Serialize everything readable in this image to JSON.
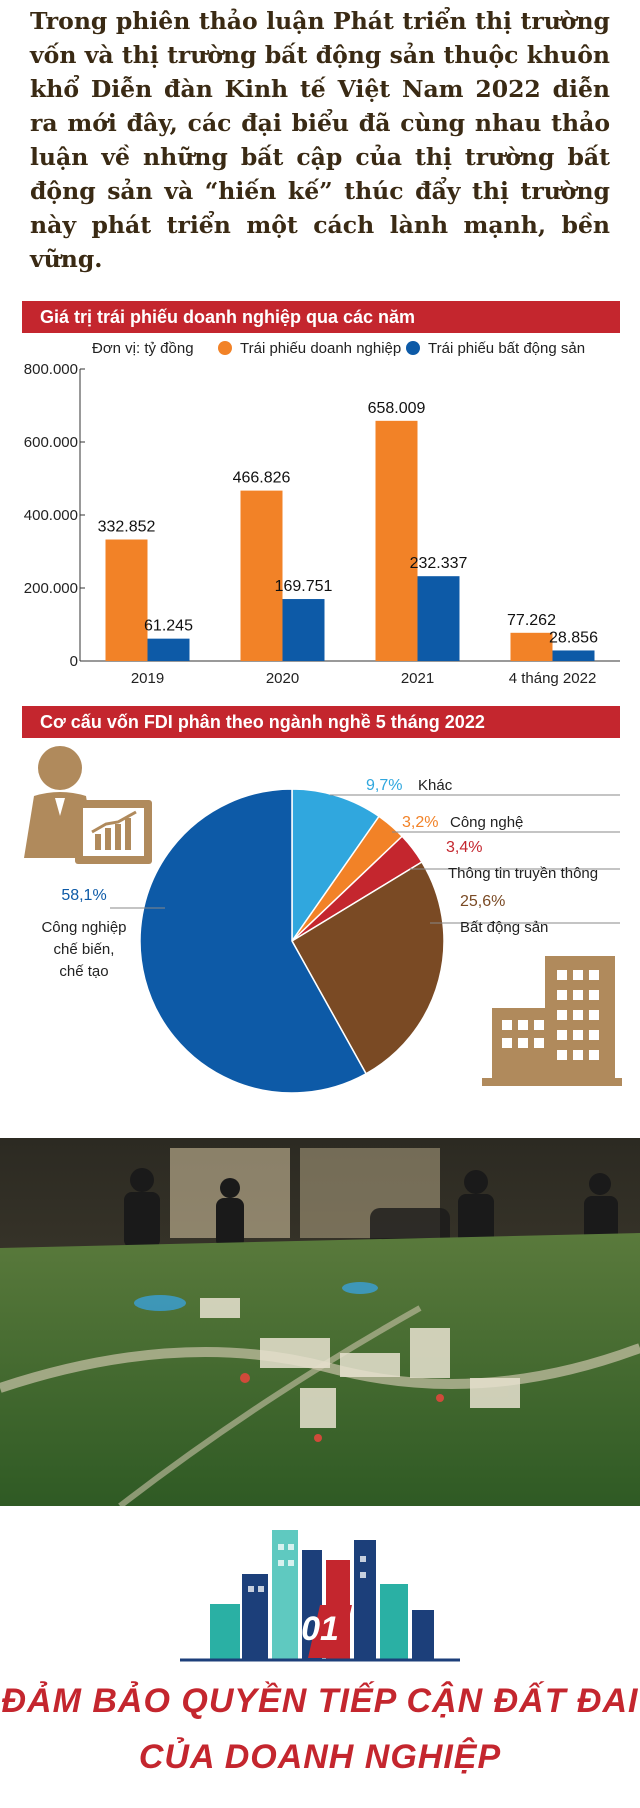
{
  "intro": {
    "text": "Trong phiên thảo luận Phát triển thị trường vốn và thị trường bất động sản thuộc khuôn khổ Diễn đàn Kinh tế Việt Nam 2022 diễn ra mới đây, các đại biểu đã cùng nhau thảo luận về những bất cập của thị trường bất động sản và “hiến kế” thúc đẩy thị trường này phát triển một cách lành mạnh, bền vững."
  },
  "colors": {
    "orange": "#f28227",
    "blue": "#0d5aa7",
    "red": "#c4262e",
    "brown": "#7a4a24",
    "light_blue": "#30a7de",
    "tan": "#b08a5c"
  },
  "chart_data": [
    {
      "type": "bar",
      "title": "Giá trị trái phiếu doanh nghiệp qua các năm",
      "unit_label": "Đơn vị: tỷ đồng",
      "categories": [
        "2019",
        "2020",
        "2021",
        "4 tháng 2022"
      ],
      "series": [
        {
          "name": "Trái phiếu doanh nghiệp",
          "color": "#f28227",
          "values": [
            332852,
            466826,
            658009,
            77262
          ],
          "labels": [
            "332.852",
            "466.826",
            "658.009",
            "77.262"
          ]
        },
        {
          "name": "Trái phiếu bất động sản",
          "color": "#0d5aa7",
          "values": [
            61245,
            169751,
            232337,
            28856
          ],
          "labels": [
            "61.245",
            "169.751",
            "232.337",
            "28.856"
          ]
        }
      ],
      "ylim": [
        0,
        800000
      ],
      "yticks": [
        0,
        200000,
        400000,
        600000,
        800000
      ],
      "ytick_labels": [
        "0",
        "200.000",
        "400.000",
        "600.000",
        "800.000"
      ],
      "grid": false,
      "legend": "top"
    },
    {
      "type": "pie",
      "title": "Cơ cấu vốn FDI phân theo ngành nghề 5 tháng 2022",
      "slices": [
        {
          "name": "Khác",
          "value": 9.7,
          "label": "9,7%",
          "color": "#30a7de"
        },
        {
          "name": "Công nghệ",
          "value": 3.2,
          "label": "3,2%",
          "color": "#f28227"
        },
        {
          "name": "Thông tin truyền thông",
          "value": 3.4,
          "label": "3,4%",
          "color": "#c4262e"
        },
        {
          "name": "Bất động sản",
          "value": 25.6,
          "label": "25,6%",
          "color": "#7a4a24"
        },
        {
          "name": "Công nghiệp chế biến, chế tạo",
          "value": 58.1,
          "label": "58,1%",
          "color": "#0d5aa7",
          "name_lines": [
            "Công nghiệp",
            "chế biến,",
            "chế tạo"
          ]
        }
      ]
    }
  ],
  "section": {
    "number": "01",
    "title_line1": "ĐẢM BẢO QUYỀN TIẾP CẬN ĐẤT ĐAI",
    "title_line2": "CỦA DOANH NGHIỆP"
  }
}
